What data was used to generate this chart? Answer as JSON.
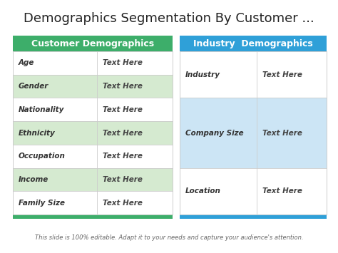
{
  "title": "Demographics Segmentation By Customer ...",
  "title_fontsize": 13,
  "title_color": "#222222",
  "background_color": "#ffffff",
  "footer_text": "This slide is 100% editable. Adapt it to your needs and capture your audience's attention.",
  "left_header": "Customer Demographics",
  "right_header": "Industry  Demographics",
  "left_header_bg": "#3dae6a",
  "right_header_bg": "#2fa0d8",
  "header_text_color": "#ffffff",
  "left_rows": [
    {
      "label": "Age",
      "value": "Text Here",
      "shaded": false
    },
    {
      "label": "Gender",
      "value": "Text Here",
      "shaded": true
    },
    {
      "label": "Nationality",
      "value": "Text Here",
      "shaded": false
    },
    {
      "label": "Ethnicity",
      "value": "Text Here",
      "shaded": true
    },
    {
      "label": "Occupation",
      "value": "Text Here",
      "shaded": false
    },
    {
      "label": "Income",
      "value": "Text Here",
      "shaded": true
    },
    {
      "label": "Family Size",
      "value": "Text Here",
      "shaded": false
    }
  ],
  "right_rows": [
    {
      "label": "Industry",
      "value": "Text Here",
      "shaded": false,
      "row_span": 2
    },
    {
      "label": "Company Size",
      "value": "Text Here",
      "shaded": true,
      "row_span": 3
    },
    {
      "label": "Location",
      "value": "Text Here",
      "shaded": false,
      "row_span": 2
    }
  ],
  "left_shaded_color": "#d5ead0",
  "right_shaded_color": "#cce5f5",
  "border_color": "#cccccc",
  "label_fontsize": 7.5,
  "value_fontsize": 7.5,
  "header_fontsize": 9,
  "footer_fontsize": 6
}
